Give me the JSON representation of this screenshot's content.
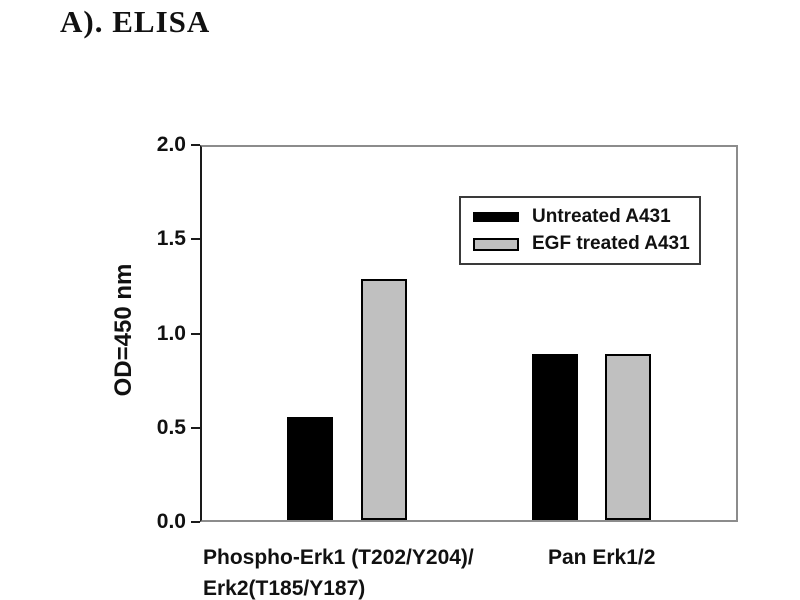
{
  "title": "A). ELISA",
  "chart_data": {
    "type": "bar",
    "title": "A). ELISA",
    "categories": [
      "Phospho-Erk1 (T202/Y204)/\nErk2(T185/Y187)",
      "Pan Erk1/2"
    ],
    "series": [
      {
        "name": "Untreated A431",
        "color": "#000000",
        "values": [
          0.55,
          0.89
        ]
      },
      {
        "name": "EGF treated A431",
        "color": "#c0c0c0",
        "values": [
          1.29,
          0.89
        ]
      }
    ],
    "xlabel": "",
    "ylabel": "OD=450 nm",
    "ylim": [
      0.0,
      2.0
    ],
    "y_ticks": [
      0,
      0.5,
      1.0,
      1.5,
      2.0
    ],
    "y_tick_labels": [
      "0.0",
      "0.5",
      "1.0",
      "1.5",
      "2.0"
    ],
    "grid": false,
    "legend_position": "upper right",
    "bar_border_color": "#000000",
    "frame": true
  }
}
